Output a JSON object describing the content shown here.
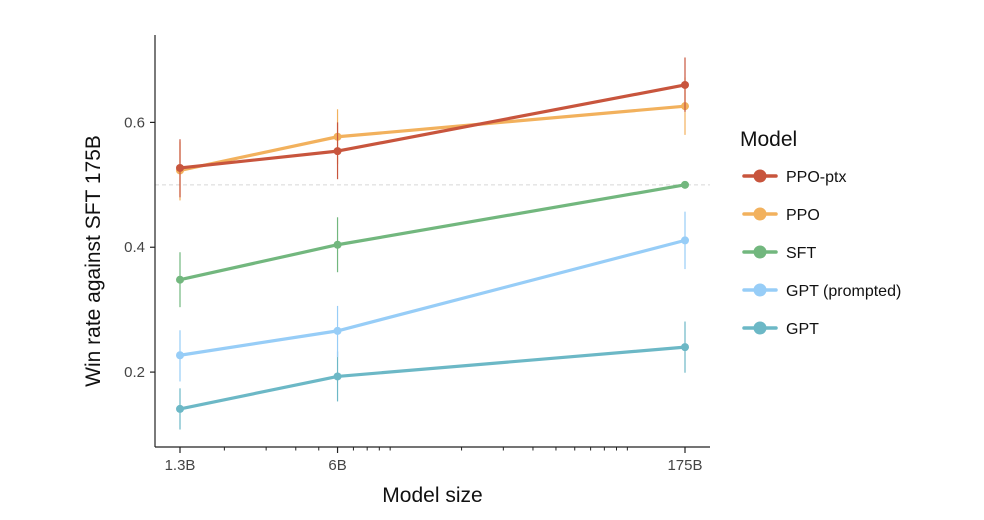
{
  "chart_data": {
    "type": "line",
    "title": "",
    "xlabel": "Model size",
    "ylabel": "Win rate against SFT 175B",
    "x_scale": "log",
    "x": [
      1.3,
      6,
      175
    ],
    "x_tick_labels": [
      "1.3B",
      "6B",
      "175B"
    ],
    "xlim": [
      1.0,
      200
    ],
    "ylim": [
      0.08,
      0.74
    ],
    "y_ticks": [
      0.2,
      0.4,
      0.6
    ],
    "y_tick_labels": [
      "0.2",
      "0.4",
      "0.6"
    ],
    "reference_line": 0.5,
    "grid": false,
    "legend_title": "Model",
    "legend_position": "right",
    "series": [
      {
        "name": "PPO-ptx",
        "color": "#c8553d",
        "values": [
          0.527,
          0.554,
          0.66
        ],
        "err_low": [
          0.48,
          0.509,
          0.617
        ],
        "err_high": [
          0.573,
          0.6,
          0.704
        ]
      },
      {
        "name": "PPO",
        "color": "#f2b15d",
        "values": [
          0.523,
          0.577,
          0.626
        ],
        "err_low": [
          0.475,
          0.533,
          0.58
        ],
        "err_high": [
          0.569,
          0.621,
          0.672
        ]
      },
      {
        "name": "SFT",
        "color": "#72b77e",
        "values": [
          0.348,
          0.404,
          0.5
        ],
        "err_low": [
          0.304,
          0.36,
          0.5
        ],
        "err_high": [
          0.392,
          0.448,
          0.5
        ]
      },
      {
        "name": "GPT (prompted)",
        "color": "#97cdf7",
        "values": [
          0.227,
          0.266,
          0.411
        ],
        "err_low": [
          0.185,
          0.224,
          0.365
        ],
        "err_high": [
          0.267,
          0.306,
          0.457
        ]
      },
      {
        "name": "GPT",
        "color": "#6cb8c6",
        "values": [
          0.141,
          0.193,
          0.24
        ],
        "err_low": [
          0.108,
          0.153,
          0.199
        ],
        "err_high": [
          0.174,
          0.233,
          0.281
        ]
      }
    ]
  }
}
